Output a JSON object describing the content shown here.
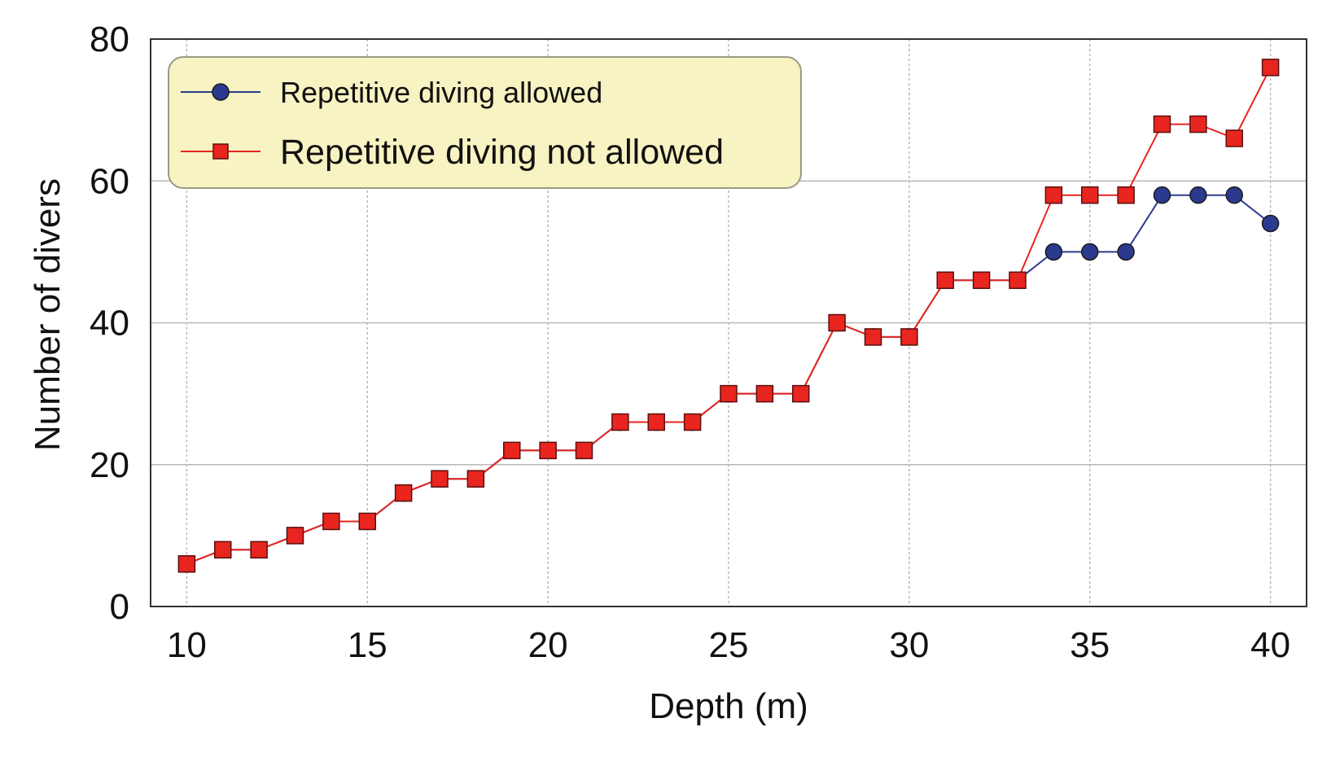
{
  "chart_data": {
    "type": "line",
    "title": "",
    "xlabel": "Depth (m)",
    "ylabel": "Number of divers",
    "xlim": [
      9,
      41
    ],
    "ylim": [
      0,
      80
    ],
    "xticks": [
      10,
      15,
      20,
      25,
      30,
      35,
      40
    ],
    "yticks": [
      0,
      20,
      40,
      60,
      80
    ],
    "grid": true,
    "legend_position": "top-left",
    "x": [
      10,
      11,
      12,
      13,
      14,
      15,
      16,
      17,
      18,
      19,
      20,
      21,
      22,
      23,
      24,
      25,
      26,
      27,
      28,
      29,
      30,
      31,
      32,
      33,
      34,
      35,
      36,
      37,
      38,
      39,
      40
    ],
    "series": [
      {
        "name": "Repetitive diving allowed",
        "color": "#2b3a8f",
        "marker": "circle",
        "values": [
          6,
          8,
          8,
          10,
          12,
          12,
          16,
          18,
          18,
          22,
          22,
          22,
          26,
          26,
          26,
          30,
          30,
          30,
          40,
          38,
          38,
          46,
          46,
          46,
          50,
          50,
          50,
          58,
          58,
          58,
          54
        ]
      },
      {
        "name": "Repetitive diving not allowed",
        "color": "#e8251f",
        "marker": "square",
        "values": [
          6,
          8,
          8,
          10,
          12,
          12,
          16,
          18,
          18,
          22,
          22,
          22,
          26,
          26,
          26,
          30,
          30,
          30,
          40,
          38,
          38,
          46,
          46,
          46,
          58,
          58,
          58,
          68,
          68,
          66,
          76
        ]
      }
    ]
  }
}
